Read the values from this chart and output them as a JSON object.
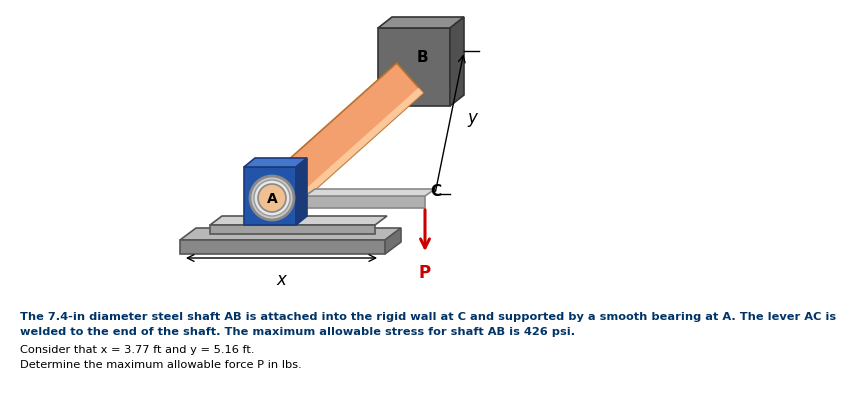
{
  "bg_color": "#ffffff",
  "text_lines": [
    "The 7.4-in diameter steel shaft AB is attached into the rigid wall at C and supported by a smooth bearing at A. The lever AC is",
    "welded to the end of the shaft. The maximum allowable stress for shaft AB is 426 psi.",
    "Consider that x = 3.77 ft and y = 5.16 ft.",
    "Determine the maximum allowable force P in lbs."
  ],
  "label_B": "B",
  "label_A": "A",
  "label_C": "C",
  "label_x": "x",
  "label_y": "y",
  "label_P": "P",
  "shaft_color": "#f4a06e",
  "wall_color": "#6a6a6a",
  "wall_top_color": "#909090",
  "wall_right_color": "#505050",
  "bearing_blue": "#2255aa",
  "bearing_blue_top": "#4477cc",
  "bearing_blue_right": "#1a3a7a",
  "bearing_gray_outer": "#d0d0d0",
  "bearing_gray_inner": "#f0c090",
  "plate_top_color": "#b8b8b8",
  "plate_front_color": "#888888",
  "plate2_top_color": "#d0d0d0",
  "plate2_front_color": "#a0a0a0",
  "lever_front_color": "#b0b0b0",
  "lever_top_color": "#d8d8d8",
  "arrow_color": "#cc0000",
  "dim_line_color": "#000000"
}
